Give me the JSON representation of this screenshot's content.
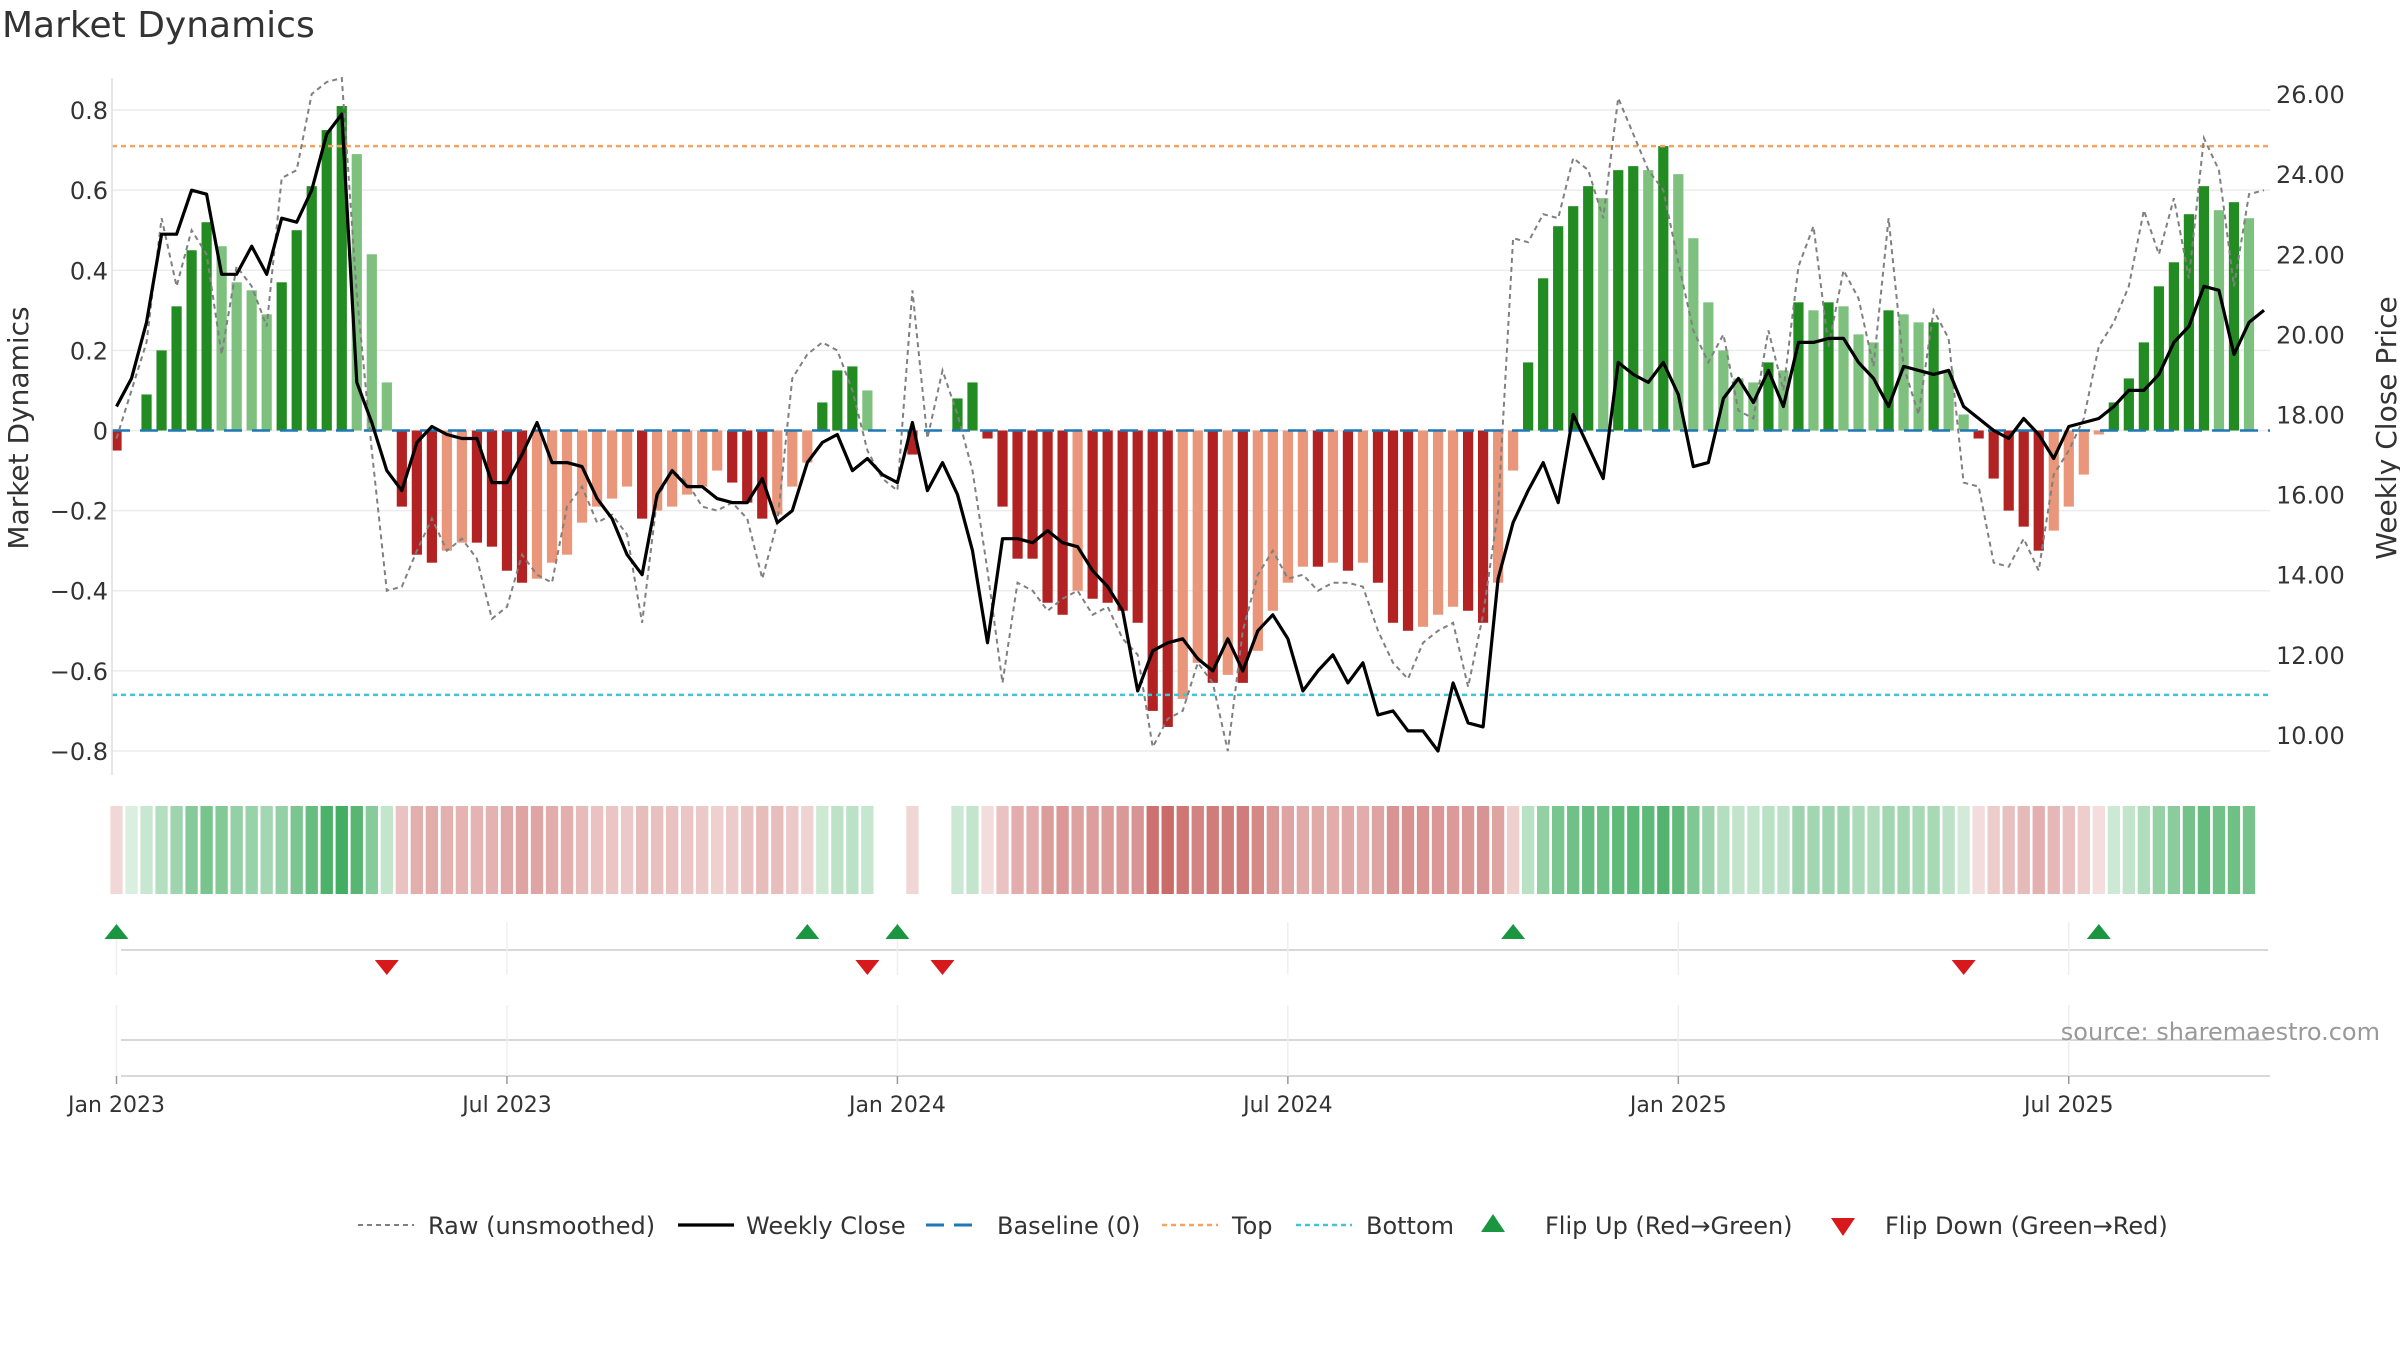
{
  "chart_data": {
    "type": "bar",
    "title": "Market Dynamics",
    "source": "source: sharemaestro.com",
    "y_left_label": "Market Dynamics",
    "y_right_label": "Weekly Close Price",
    "y_left_range": [
      -0.86,
      0.88
    ],
    "y_right_range": [
      9.0,
      26.4
    ],
    "y_left_ticks": [
      {
        "value": 0.8,
        "label": "0.8"
      },
      {
        "value": 0.6,
        "label": "0.6"
      },
      {
        "value": 0.4,
        "label": "0.4"
      },
      {
        "value": 0.2,
        "label": "0.2"
      },
      {
        "value": 0,
        "label": "0"
      },
      {
        "value": -0.2,
        "label": "−0.2"
      },
      {
        "value": -0.4,
        "label": "−0.4"
      },
      {
        "value": -0.6,
        "label": "−0.6"
      },
      {
        "value": -0.8,
        "label": "−0.8"
      }
    ],
    "y_right_ticks": [
      {
        "value": 26,
        "label": "26.00"
      },
      {
        "value": 24,
        "label": "24.00"
      },
      {
        "value": 22,
        "label": "22.00"
      },
      {
        "value": 20,
        "label": "20.00"
      },
      {
        "value": 18,
        "label": "18.00"
      },
      {
        "value": 16,
        "label": "16.00"
      },
      {
        "value": 14,
        "label": "14.00"
      },
      {
        "value": 12,
        "label": "12.00"
      },
      {
        "value": 10,
        "label": "10.00"
      }
    ],
    "x_ticks": [
      {
        "week": 1,
        "label": "Jan 2023"
      },
      {
        "week": 27,
        "label": "Jul 2023"
      },
      {
        "week": 53,
        "label": "Jan 2024"
      },
      {
        "week": 79,
        "label": "Jul 2024"
      },
      {
        "week": 105,
        "label": "Jan 2025"
      },
      {
        "week": 131,
        "label": "Jul 2025"
      }
    ],
    "week_range": [
      -0.3,
      143.4
    ],
    "top_threshold": 0.71,
    "bottom_threshold": -0.66,
    "series": [
      {
        "name": "Market Dynamics",
        "kind": "bar",
        "values": [
          -0.05,
          0.0,
          0.09,
          0.2,
          0.31,
          0.45,
          0.52,
          0.46,
          0.37,
          0.35,
          0.29,
          0.37,
          0.5,
          0.61,
          0.75,
          0.81,
          0.69,
          0.44,
          0.12,
          -0.19,
          -0.31,
          -0.33,
          -0.3,
          -0.28,
          -0.28,
          -0.29,
          -0.35,
          -0.38,
          -0.37,
          -0.33,
          -0.31,
          -0.23,
          -0.19,
          -0.17,
          -0.14,
          -0.22,
          -0.2,
          -0.19,
          -0.16,
          -0.14,
          -0.1,
          -0.13,
          -0.18,
          -0.22,
          -0.21,
          -0.14,
          -0.08,
          0.07,
          0.15,
          0.16,
          0.1,
          0.0,
          0.0,
          -0.06,
          0.0,
          0.0,
          0.08,
          0.12,
          -0.02,
          -0.19,
          -0.32,
          -0.32,
          -0.43,
          -0.46,
          -0.4,
          -0.42,
          -0.43,
          -0.45,
          -0.48,
          -0.7,
          -0.74,
          -0.67,
          -0.58,
          -0.63,
          -0.61,
          -0.63,
          -0.55,
          -0.45,
          -0.38,
          -0.34,
          -0.34,
          -0.33,
          -0.35,
          -0.33,
          -0.38,
          -0.48,
          -0.5,
          -0.49,
          -0.46,
          -0.44,
          -0.45,
          -0.48,
          -0.38,
          -0.1,
          0.17,
          0.38,
          0.51,
          0.56,
          0.61,
          0.58,
          0.65,
          0.66,
          0.65,
          0.71,
          0.64,
          0.48,
          0.32,
          0.2,
          0.13,
          0.12,
          0.17,
          0.15,
          0.32,
          0.3,
          0.32,
          0.31,
          0.24,
          0.22,
          0.3,
          0.29,
          0.27,
          0.27,
          0.15,
          0.04,
          -0.02,
          -0.12,
          -0.2,
          -0.24,
          -0.3,
          -0.25,
          -0.19,
          -0.11,
          -0.01,
          0.07,
          0.13,
          0.22,
          0.36,
          0.42,
          0.54,
          0.61,
          0.55,
          0.57,
          0.53
        ]
      },
      {
        "name": "Raw (unsmoothed)",
        "kind": "line",
        "values": [
          -0.02,
          0.1,
          0.22,
          0.53,
          0.36,
          0.5,
          0.44,
          0.19,
          0.41,
          0.36,
          0.26,
          0.63,
          0.65,
          0.84,
          0.87,
          0.88,
          0.34,
          -0.05,
          -0.4,
          -0.39,
          -0.3,
          -0.22,
          -0.3,
          -0.27,
          -0.32,
          -0.47,
          -0.44,
          -0.31,
          -0.36,
          -0.38,
          -0.19,
          -0.14,
          -0.23,
          -0.21,
          -0.26,
          -0.48,
          -0.17,
          -0.1,
          -0.13,
          -0.19,
          -0.2,
          -0.18,
          -0.22,
          -0.37,
          -0.23,
          0.13,
          0.19,
          0.22,
          0.2,
          0.1,
          -0.05,
          -0.12,
          -0.15,
          0.35,
          -0.02,
          0.15,
          0.04,
          -0.1,
          -0.35,
          -0.63,
          -0.38,
          -0.4,
          -0.45,
          -0.42,
          -0.4,
          -0.46,
          -0.44,
          -0.52,
          -0.56,
          -0.79,
          -0.72,
          -0.7,
          -0.58,
          -0.63,
          -0.8,
          -0.5,
          -0.36,
          -0.3,
          -0.37,
          -0.36,
          -0.4,
          -0.38,
          -0.38,
          -0.39,
          -0.5,
          -0.58,
          -0.62,
          -0.53,
          -0.5,
          -0.48,
          -0.64,
          -0.46,
          -0.2,
          0.48,
          0.47,
          0.54,
          0.53,
          0.68,
          0.65,
          0.53,
          0.83,
          0.74,
          0.65,
          0.6,
          0.42,
          0.25,
          0.17,
          0.24,
          0.05,
          0.03,
          0.25,
          0.1,
          0.41,
          0.51,
          0.21,
          0.4,
          0.33,
          0.16,
          0.53,
          0.16,
          0.04,
          0.3,
          0.23,
          -0.13,
          -0.14,
          -0.33,
          -0.34,
          -0.27,
          -0.35,
          -0.11,
          -0.05,
          0.03,
          0.21,
          0.27,
          0.36,
          0.55,
          0.44,
          0.58,
          0.38,
          0.73,
          0.65,
          0.36,
          0.59,
          0.6
        ]
      },
      {
        "name": "Weekly Close",
        "kind": "line",
        "values": [
          18.2,
          18.9,
          20.3,
          22.5,
          22.5,
          23.6,
          23.5,
          21.5,
          21.5,
          22.2,
          21.5,
          22.9,
          22.8,
          23.6,
          25.0,
          25.5,
          18.8,
          17.8,
          16.6,
          16.1,
          17.3,
          17.7,
          17.5,
          17.4,
          17.4,
          16.3,
          16.3,
          17.0,
          17.8,
          16.8,
          16.8,
          16.7,
          15.9,
          15.4,
          14.5,
          14.0,
          16.0,
          16.6,
          16.2,
          16.2,
          15.9,
          15.8,
          15.8,
          16.4,
          15.3,
          15.6,
          16.8,
          17.3,
          17.5,
          16.6,
          16.9,
          16.5,
          16.3,
          17.8,
          16.1,
          16.8,
          16.0,
          14.6,
          12.3,
          14.9,
          14.9,
          14.8,
          15.1,
          14.8,
          14.7,
          14.1,
          13.7,
          13.1,
          11.1,
          12.1,
          12.3,
          12.4,
          11.9,
          11.6,
          12.4,
          11.6,
          12.6,
          13.0,
          12.4,
          11.1,
          11.6,
          12.0,
          11.3,
          11.8,
          10.5,
          10.6,
          10.1,
          10.1,
          9.6,
          11.3,
          10.3,
          10.2,
          13.9,
          15.3,
          16.1,
          16.8,
          15.8,
          18.0,
          17.2,
          16.4,
          19.3,
          19.0,
          18.8,
          19.3,
          18.5,
          16.7,
          16.8,
          18.4,
          18.9,
          18.3,
          19.1,
          18.2,
          19.8,
          19.8,
          19.9,
          19.9,
          19.3,
          18.9,
          18.2,
          19.2,
          19.1,
          19.0,
          19.1,
          18.2,
          17.9,
          17.6,
          17.4,
          17.9,
          17.5,
          16.9,
          17.7,
          17.8,
          17.9,
          18.2,
          18.6,
          18.6,
          19.0,
          19.8,
          20.2,
          21.2,
          21.1,
          19.5,
          20.3,
          20.6
        ]
      },
      {
        "name": "Baseline (0)",
        "kind": "line",
        "value": 0
      },
      {
        "name": "Top",
        "kind": "line",
        "value": 0.71
      },
      {
        "name": "Bottom",
        "kind": "line",
        "value": -0.66
      },
      {
        "name": "Flip Up (Red→Green)",
        "kind": "marker",
        "weeks": [
          1,
          47,
          53,
          94,
          133
        ]
      },
      {
        "name": "Flip Down (Green→Red)",
        "kind": "marker",
        "weeks": [
          19,
          51,
          56,
          124
        ]
      }
    ],
    "colors": {
      "green_strong": "#228b22",
      "green_light": "#7ec07e",
      "red_strong": "#b22222",
      "red_light": "#e9967a",
      "top_line": "#f4a460",
      "bottom_line": "#40c4d8",
      "baseline": "#1f77b4",
      "close_line": "#000000",
      "raw_line": "#808080",
      "marker_up": "#1a9641",
      "marker_down": "#d7191c"
    },
    "legend_position": "bottom-center",
    "grid": true
  }
}
